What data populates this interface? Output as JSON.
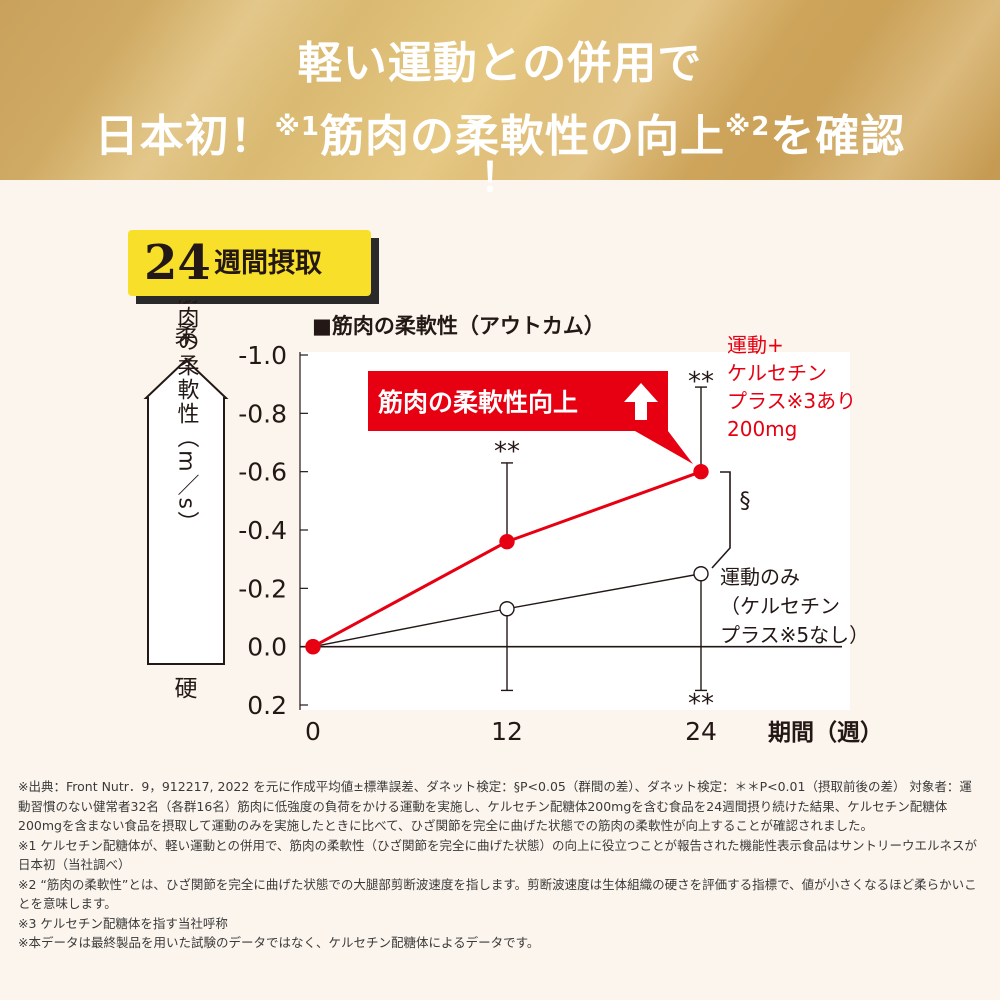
{
  "header": {
    "line1": "軽い運動との併用で",
    "line2_a": "日本初！",
    "line2_note1": "※1",
    "line2_b": "筋肉の柔軟性の向上",
    "line2_note2": "※2",
    "line2_c": "を確認",
    "line3": "！"
  },
  "badge": {
    "number": "24",
    "text": "週間摂取"
  },
  "chart_data": {
    "type": "line",
    "title": "■筋肉の柔軟性（アウトカム）",
    "ylabel": "Δ筋肉の柔軟性（m／s）",
    "y_top_label": "柔",
    "y_bottom_label": "硬",
    "xlabel": "期間（週）",
    "x": [
      0,
      12,
      24
    ],
    "x_tick_labels": [
      "0",
      "12",
      "24"
    ],
    "y_ticks": [
      -1.0,
      -0.8,
      -0.6,
      -0.4,
      -0.2,
      0.0,
      0.2
    ],
    "y_tick_labels": [
      "-1.0",
      "-0.8",
      "-0.6",
      "-0.4",
      "-0.2",
      "0.0",
      "0.2"
    ],
    "ylim": [
      0.2,
      -1.0
    ],
    "series": [
      {
        "name": "運動＋ケルセチンプラス※3あり200mg",
        "label_lines": [
          "運動+",
          "ケルセチン",
          "プラス※3あり",
          "200mg"
        ],
        "color": "#e60012",
        "filled": true,
        "values": [
          0.0,
          -0.36,
          -0.6
        ],
        "err_top": [
          null,
          -0.63,
          -0.89
        ],
        "err_bottom": [
          null,
          -0.36,
          -0.6
        ],
        "sig": [
          "",
          "**",
          "**"
        ]
      },
      {
        "name": "運動のみ（ケルセチンプラス※5なし）",
        "label_lines": [
          "運動のみ",
          "（ケルセチン",
          "プラス※5なし）"
        ],
        "color": "#231815",
        "filled": false,
        "values": [
          0.0,
          -0.13,
          -0.25
        ],
        "err_top": [
          null,
          -0.13,
          -0.25
        ],
        "err_bottom": [
          null,
          0.15,
          0.15
        ],
        "sig": [
          "",
          "",
          "**"
        ]
      }
    ],
    "bracket_label": "§",
    "callout": "筋肉の柔軟性向上",
    "colors": {
      "red": "#e60012",
      "black": "#231815",
      "plot_bg": "#ffffff"
    }
  },
  "notes": [
    "※出典：Front Nutr．9，912217, 2022 を元に作成平均値±標準誤差、ダネット検定：§P<0.05（群間の差）、ダネット検定：＊＊P<0.01（摂取前後の差） 対象者：運動習慣のない健常者32名（各群16名）筋肉に低強度の負荷をかける運動を実施し、ケルセチン配糖体200mgを含む食品を24週間摂り続けた結果、ケルセチン配糖体200mgを含まない食品を摂取して運動のみを実施したときに比べて、ひざ関節を完全に曲げた状態での筋肉の柔軟性が向上することが確認されました。",
    "※1 ケルセチン配糖体が、軽い運動との併用で、筋肉の柔軟性（ひざ関節を完全に曲げた状態）の向上に役立つことが報告された機能性表示食品はサントリーウエルネスが日本初（当社調べ）",
    "※2 “筋肉の柔軟性”とは、ひざ関節を完全に曲げた状態での大腿部剪断波速度を指します。剪断波速度は生体組織の硬さを評価する指標で、値が小さくなるほど柔らかいことを意味します。",
    "※3 ケルセチン配糖体を指す当社呼称",
    "※本データは最終製品を用いた試験のデータではなく、ケルセチン配糖体によるデータです。"
  ]
}
